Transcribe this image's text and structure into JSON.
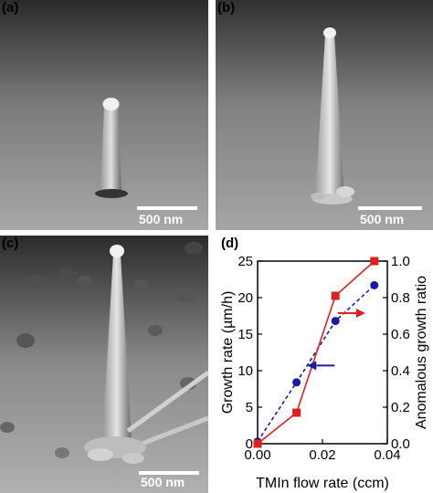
{
  "panels": {
    "a": {
      "label": "(a)",
      "scalebar": "500 nm"
    },
    "b": {
      "label": "(b)",
      "scalebar": "500 nm"
    },
    "c": {
      "label": "(c)",
      "scalebar": "500 nm"
    },
    "d": {
      "label": "(d)"
    }
  },
  "chart_data": {
    "type": "line",
    "xlabel": "TMIn flow rate (ccm)",
    "ylabel": "Growth rate (µm/h)",
    "y2label": "Anomalous growth ratio",
    "xlim": [
      0.0,
      0.04
    ],
    "ylim": [
      0,
      25
    ],
    "y2lim": [
      0.0,
      1.0
    ],
    "xticks": [
      "0.00",
      "0.02",
      "0.04"
    ],
    "yticks": [
      "0",
      "5",
      "10",
      "15",
      "20",
      "25"
    ],
    "y2ticks": [
      "0.0",
      "0.2",
      "0.4",
      "0.6",
      "0.8",
      "1.0"
    ],
    "series": [
      {
        "axis": "left",
        "color": "#1a1aa8",
        "style": "dashed",
        "marker": "circle",
        "x": [
          0.0,
          0.012,
          0.024,
          0.036
        ],
        "y": [
          0.3,
          8.4,
          16.8,
          21.7
        ]
      },
      {
        "axis": "right",
        "color": "#e02020",
        "style": "solid",
        "marker": "square",
        "x": [
          0.0,
          0.012,
          0.024,
          0.036
        ],
        "y": [
          0.0,
          0.17,
          0.81,
          1.0
        ]
      }
    ],
    "annotations": [
      {
        "type": "arrow",
        "direction": "left",
        "color": "#1a1aa8",
        "at": [
          0.0195,
          10.7
        ]
      },
      {
        "type": "arrow",
        "direction": "right",
        "color": "#e02020",
        "at": [
          0.029,
          0.715
        ]
      }
    ]
  }
}
